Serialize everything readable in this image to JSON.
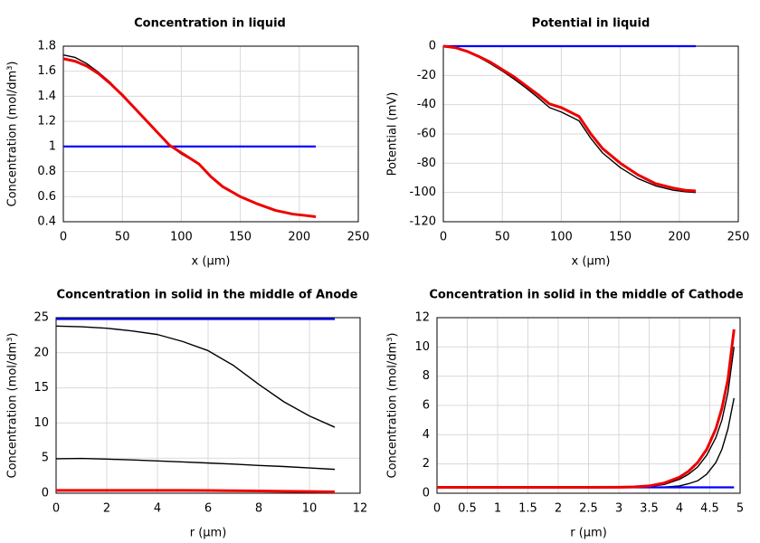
{
  "chart_data": [
    {
      "type": "line",
      "title": "Concentration in liquid",
      "x_label": "x (µm)",
      "y_label": "Concentration (mol/dm³)",
      "grid": true,
      "xlim": [
        0,
        250
      ],
      "xticks": [
        0,
        50,
        100,
        150,
        200,
        250
      ],
      "ylim": [
        0.4,
        1.8
      ],
      "yticks": [
        0.4,
        0.6,
        0.8,
        1,
        1.2,
        1.4,
        1.6,
        1.8
      ],
      "x": [
        0,
        10,
        20,
        30,
        40,
        50,
        60,
        70,
        80,
        90,
        100,
        115,
        125,
        135,
        150,
        165,
        180,
        195,
        205,
        214
      ],
      "series": [
        {
          "color": "#000000",
          "values": [
            1.73,
            1.71,
            1.66,
            1.59,
            1.51,
            1.41,
            1.31,
            1.21,
            1.11,
            1.01,
            0.94,
            0.86,
            0.76,
            0.68,
            0.6,
            0.54,
            0.49,
            0.46,
            0.45,
            0.44
          ]
        },
        {
          "color": "#0000ff",
          "values": [
            1,
            1,
            1,
            1,
            1,
            1,
            1,
            1,
            1,
            1,
            1,
            1,
            1,
            1,
            1,
            1,
            1,
            1,
            1,
            1
          ]
        },
        {
          "color": "#ee0000",
          "values": [
            1.7,
            1.68,
            1.64,
            1.58,
            1.5,
            1.41,
            1.31,
            1.21,
            1.11,
            1.01,
            0.95,
            0.86,
            0.76,
            0.68,
            0.6,
            0.54,
            0.49,
            0.46,
            0.45,
            0.44
          ]
        }
      ]
    },
    {
      "type": "line",
      "title": "Potential in liquid",
      "x_label": "x (µm)",
      "y_label": "Potential (mV)",
      "grid": true,
      "xlim": [
        0,
        250
      ],
      "xticks": [
        0,
        50,
        100,
        150,
        200,
        250
      ],
      "ylim": [
        -120,
        0
      ],
      "yticks": [
        -120,
        -100,
        -80,
        -60,
        -40,
        -20,
        0
      ],
      "x": [
        0,
        10,
        20,
        30,
        40,
        50,
        60,
        70,
        80,
        90,
        100,
        115,
        125,
        135,
        150,
        165,
        180,
        195,
        205,
        214
      ],
      "series": [
        {
          "color": "#000000",
          "values": [
            0,
            -1,
            -3.7,
            -7.5,
            -12,
            -17,
            -22.5,
            -28.5,
            -35,
            -42,
            -45,
            -51,
            -63,
            -73,
            -83,
            -90.5,
            -95.5,
            -98.5,
            -99.5,
            -100
          ]
        },
        {
          "color": "#0000ff",
          "values": [
            0,
            0,
            0,
            0,
            0,
            0,
            0,
            0,
            0,
            0,
            0,
            0,
            0,
            0,
            0,
            0,
            0,
            0,
            0,
            0
          ]
        },
        {
          "color": "#ee0000",
          "values": [
            0,
            -1,
            -3.5,
            -7,
            -11,
            -16,
            -21,
            -27,
            -33,
            -39.5,
            -42,
            -48,
            -60,
            -70,
            -80,
            -88,
            -94,
            -97,
            -98.5,
            -99
          ]
        }
      ]
    },
    {
      "type": "line",
      "title": "Concentration in solid in the middle of Anode",
      "x_label": "r (µm)",
      "y_label": "Concentration (mol/dm³)",
      "grid": true,
      "xlim": [
        0,
        12
      ],
      "xticks": [
        0,
        2,
        4,
        6,
        8,
        10,
        12
      ],
      "ylim": [
        0,
        25
      ],
      "yticks": [
        0,
        5,
        10,
        15,
        20,
        25
      ],
      "x": [
        0,
        1,
        2,
        3,
        4,
        5,
        6,
        7,
        8,
        9,
        10,
        11
      ],
      "series": [
        {
          "color": "#000000",
          "values": [
            23.8,
            23.7,
            23.5,
            23.1,
            22.6,
            21.6,
            20.3,
            18.2,
            15.5,
            13,
            11,
            9.4
          ]
        },
        {
          "color": "#000000",
          "values": [
            4.9,
            4.95,
            4.85,
            4.75,
            4.6,
            4.45,
            4.3,
            4.15,
            3.95,
            3.8,
            3.6,
            3.4
          ]
        },
        {
          "color": "#0000ff",
          "values": [
            24.8,
            24.8,
            24.8,
            24.8,
            24.8,
            24.8,
            24.8,
            24.8,
            24.8,
            24.8,
            24.8,
            24.8
          ]
        },
        {
          "color": "#ee0000",
          "values": [
            0.4,
            0.4,
            0.4,
            0.4,
            0.4,
            0.4,
            0.38,
            0.35,
            0.32,
            0.28,
            0.24,
            0.2
          ]
        }
      ]
    },
    {
      "type": "line",
      "title": "Concentration in solid in the middle of Cathode",
      "x_label": "r (µm)",
      "y_label": "Concentration (mol/dm³)",
      "grid": true,
      "xlim": [
        0,
        5
      ],
      "xticks": [
        0,
        0.5,
        1,
        1.5,
        2,
        2.5,
        3,
        3.5,
        4,
        4.5,
        5
      ],
      "ylim": [
        0,
        12
      ],
      "yticks": [
        0,
        2,
        4,
        6,
        8,
        10,
        12
      ],
      "x": [
        0,
        0.5,
        1,
        1.5,
        2,
        2.5,
        3,
        3.25,
        3.5,
        3.75,
        4,
        4.15,
        4.3,
        4.45,
        4.6,
        4.7,
        4.8,
        4.9
      ],
      "series": [
        {
          "color": "#000000",
          "values": [
            0.4,
            0.4,
            0.4,
            0.4,
            0.4,
            0.4,
            0.4,
            0.41,
            0.45,
            0.6,
            0.95,
            1.3,
            1.8,
            2.6,
            3.8,
            5,
            6.9,
            10
          ]
        },
        {
          "color": "#000000",
          "values": [
            0.4,
            0.4,
            0.4,
            0.4,
            0.4,
            0.4,
            0.4,
            0.4,
            0.4,
            0.42,
            0.5,
            0.65,
            0.85,
            1.3,
            2.1,
            3,
            4.4,
            6.5
          ]
        },
        {
          "color": "#0000ff",
          "values": [
            0.4,
            0.4,
            0.4,
            0.4,
            0.4,
            0.4,
            0.4,
            0.4,
            0.4,
            0.4,
            0.4,
            0.4,
            0.4,
            0.4,
            0.4,
            0.4,
            0.4,
            0.4
          ]
        },
        {
          "color": "#ee0000",
          "values": [
            0.4,
            0.4,
            0.4,
            0.4,
            0.4,
            0.4,
            0.41,
            0.43,
            0.5,
            0.7,
            1.1,
            1.5,
            2.1,
            3,
            4.4,
            5.8,
            7.8,
            11.2
          ]
        }
      ]
    }
  ]
}
